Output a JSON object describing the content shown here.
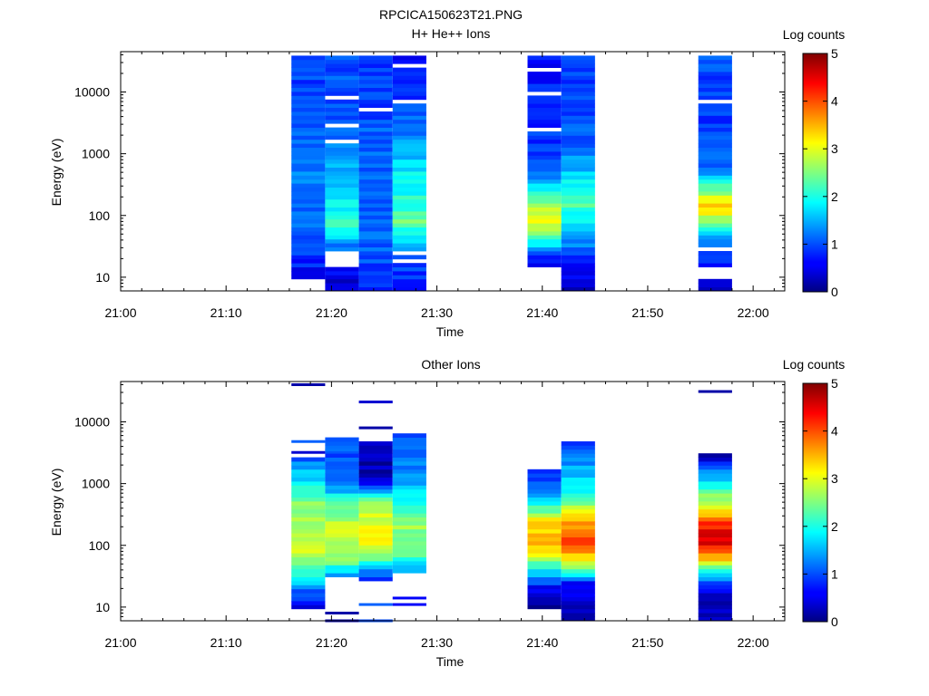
{
  "figure": {
    "title": "RPCICA150623T21.PNG"
  },
  "chart_data": [
    {
      "type": "heatmap",
      "title": "H+ He++ Ions",
      "xlabel": "Time",
      "ylabel": "Energy (eV)",
      "x_ticks": [
        "21:00",
        "21:10",
        "21:20",
        "21:30",
        "21:40",
        "21:50",
        "22:00"
      ],
      "y_ticks": [
        "10",
        "100",
        "1000",
        "10000"
      ],
      "y_scale": "log",
      "ylim": [
        6,
        45000
      ],
      "xlim": [
        "21:00",
        "22:03"
      ],
      "colorbar": {
        "label": "Log counts",
        "ticks": [
          "0",
          "1",
          "2",
          "3",
          "4",
          "5"
        ],
        "range": [
          0,
          5
        ],
        "colormap": "jet"
      },
      "columns": [
        {
          "start": "21:16:12",
          "end": "21:19:24",
          "e_min": 10,
          "e_max": 40000,
          "spectrum": [
            [
              10,
              0.6
            ],
            [
              20,
              0.8
            ],
            [
              40,
              1.0
            ],
            [
              100,
              1.1
            ],
            [
              400,
              1.2
            ],
            [
              2000,
              1.1
            ],
            [
              10000,
              1.0
            ],
            [
              40000,
              0.9
            ]
          ],
          "gaps": []
        },
        {
          "start": "21:19:24",
          "end": "21:22:36",
          "e_min": 6,
          "e_max": 40000,
          "spectrum": [
            [
              6,
              0.3
            ],
            [
              12,
              0.6
            ],
            [
              30,
              1.2
            ],
            [
              70,
              2.3
            ],
            [
              100,
              2.0
            ],
            [
              300,
              1.6
            ],
            [
              1000,
              1.3
            ],
            [
              3000,
              1.1
            ],
            [
              40000,
              1.0
            ]
          ],
          "gaps": [
            [
              15,
              25
            ],
            [
              1500,
              1700
            ],
            [
              2600,
              2900
            ],
            [
              4000,
              4400
            ],
            [
              7500,
              8200
            ],
            [
              13000,
              14000
            ],
            [
              20000,
              22000
            ],
            [
              32000,
              35000
            ]
          ]
        },
        {
          "start": "21:22:36",
          "end": "21:25:48",
          "e_min": 6,
          "e_max": 40000,
          "spectrum": [
            [
              6,
              0.9
            ],
            [
              20,
              1.0
            ],
            [
              60,
              1.1
            ],
            [
              200,
              1.0
            ],
            [
              1000,
              1.2
            ],
            [
              5000,
              0.9
            ],
            [
              40000,
              0.9
            ]
          ],
          "gaps": [
            [
              5200,
              5700
            ],
            [
              15000,
              16500
            ]
          ]
        },
        {
          "start": "21:25:48",
          "end": "21:29:00",
          "e_min": 6,
          "e_max": 40000,
          "spectrum": [
            [
              6,
              0.6
            ],
            [
              15,
              1.0
            ],
            [
              30,
              1.3
            ],
            [
              80,
              2.4
            ],
            [
              200,
              2.0
            ],
            [
              500,
              1.8
            ],
            [
              1000,
              1.5
            ],
            [
              3000,
              1.1
            ],
            [
              40000,
              0.7
            ]
          ],
          "gaps": [
            [
              16,
              20
            ],
            [
              22,
              25
            ],
            [
              4000,
              4400
            ],
            [
              6500,
              7100
            ],
            [
              26000,
              29000
            ]
          ]
        },
        {
          "start": "21:38:36",
          "end": "21:41:48",
          "e_min": 15,
          "e_max": 40000,
          "spectrum": [
            [
              15,
              0.3
            ],
            [
              35,
              1.8
            ],
            [
              60,
              2.8
            ],
            [
              100,
              3.0
            ],
            [
              200,
              2.4
            ],
            [
              400,
              1.2
            ],
            [
              1000,
              0.9
            ],
            [
              40000,
              0.7
            ]
          ],
          "gaps": [
            [
              900,
              1000
            ],
            [
              2300,
              2600
            ],
            [
              4700,
              5200
            ],
            [
              9000,
              10000
            ],
            [
              22000,
              25000
            ]
          ]
        },
        {
          "start": "21:41:48",
          "end": "21:45:00",
          "e_min": 6,
          "e_max": 40000,
          "spectrum": [
            [
              6,
              0.2
            ],
            [
              20,
              0.9
            ],
            [
              40,
              1.3
            ],
            [
              90,
              1.8
            ],
            [
              150,
              2.4
            ],
            [
              300,
              2.0
            ],
            [
              700,
              1.4
            ],
            [
              2000,
              1.0
            ],
            [
              40000,
              0.9
            ]
          ],
          "gaps": []
        },
        {
          "start": "21:54:48",
          "end": "21:58:00",
          "e_min": 6,
          "e_max": 40000,
          "spectrum": [
            [
              6,
              0.2
            ],
            [
              25,
              1.0
            ],
            [
              50,
              1.6
            ],
            [
              90,
              2.7
            ],
            [
              130,
              3.4
            ],
            [
              250,
              2.6
            ],
            [
              500,
              1.3
            ],
            [
              2000,
              0.9
            ],
            [
              40000,
              1.0
            ]
          ],
          "gaps": [
            [
              9.5,
              15
            ],
            [
              25,
              30
            ],
            [
              6800,
              7600
            ]
          ]
        }
      ]
    },
    {
      "type": "heatmap",
      "title": "Other Ions",
      "xlabel": "Time",
      "ylabel": "Energy (eV)",
      "x_ticks": [
        "21:00",
        "21:10",
        "21:20",
        "21:30",
        "21:40",
        "21:50",
        "22:00"
      ],
      "y_ticks": [
        "10",
        "100",
        "1000",
        "10000"
      ],
      "y_scale": "log",
      "ylim": [
        6,
        45000
      ],
      "xlim": [
        "21:00",
        "22:03"
      ],
      "colorbar": {
        "label": "Log counts",
        "ticks": [
          "0",
          "1",
          "2",
          "3",
          "4",
          "5"
        ],
        "range": [
          0,
          5
        ],
        "colormap": "jet"
      },
      "columns": [
        {
          "start": "21:16:12",
          "end": "21:19:24",
          "e_min": 10,
          "e_max": 2800,
          "spectrum": [
            [
              10,
              0.5
            ],
            [
              20,
              1.2
            ],
            [
              30,
              2.0
            ],
            [
              70,
              2.8
            ],
            [
              150,
              2.9
            ],
            [
              400,
              2.6
            ],
            [
              1000,
              1.9
            ],
            [
              2800,
              1.0
            ]
          ],
          "lines": [
            [
              40000,
              0.2
            ],
            [
              4800,
              1.1
            ],
            [
              3200,
              0.4
            ]
          ]
        },
        {
          "start": "21:19:24",
          "end": "21:22:36",
          "e_min": 33,
          "e_max": 5600,
          "spectrum": [
            [
              33,
              1.4
            ],
            [
              60,
              2.6
            ],
            [
              150,
              2.9
            ],
            [
              400,
              2.5
            ],
            [
              1000,
              1.2
            ],
            [
              5600,
              0.9
            ]
          ],
          "lines": [
            [
              6,
              0.2
            ],
            [
              8,
              0.2
            ],
            [
              3500,
              1.2
            ]
          ]
        },
        {
          "start": "21:22:36",
          "end": "21:25:48",
          "e_min": 26,
          "e_max": 4600,
          "spectrum": [
            [
              26,
              0.5
            ],
            [
              60,
              2.4
            ],
            [
              150,
              3.3
            ],
            [
              500,
              2.5
            ],
            [
              1200,
              0.3
            ],
            [
              4600,
              0.2
            ]
          ],
          "lines": [
            [
              21000,
              0.4
            ],
            [
              8000,
              0.2
            ],
            [
              6,
              1.0
            ],
            [
              11,
              1.1
            ]
          ]
        },
        {
          "start": "21:25:48",
          "end": "21:29:00",
          "e_min": 38,
          "e_max": 6000,
          "spectrum": [
            [
              38,
              1.5
            ],
            [
              80,
              2.4
            ],
            [
              200,
              2.6
            ],
            [
              600,
              1.8
            ],
            [
              2000,
              1.2
            ],
            [
              6000,
              0.9
            ]
          ],
          "lines": [
            [
              11,
              0.6
            ],
            [
              14,
              0.6
            ]
          ]
        },
        {
          "start": "21:38:36",
          "end": "21:41:48",
          "e_min": 9.5,
          "e_max": 1800,
          "spectrum": [
            [
              9.5,
              0.2
            ],
            [
              20,
              0.5
            ],
            [
              30,
              1.3
            ],
            [
              60,
              2.7
            ],
            [
              120,
              3.6
            ],
            [
              250,
              3.2
            ],
            [
              500,
              1.8
            ],
            [
              1800,
              0.6
            ]
          ],
          "lines": []
        },
        {
          "start": "21:41:48",
          "end": "21:45:00",
          "e_min": 6,
          "e_max": 4800,
          "spectrum": [
            [
              6,
              0.2
            ],
            [
              25,
              0.6
            ],
            [
              35,
              1.9
            ],
            [
              70,
              3.4
            ],
            [
              130,
              4.1
            ],
            [
              300,
              3.3
            ],
            [
              700,
              2.0
            ],
            [
              4800,
              0.9
            ]
          ],
          "lines": []
        },
        {
          "start": "21:54:48",
          "end": "21:58:00",
          "e_min": 6,
          "e_max": 2900,
          "spectrum": [
            [
              6,
              0.2
            ],
            [
              15,
              0.3
            ],
            [
              25,
              1.0
            ],
            [
              35,
              1.8
            ],
            [
              60,
              3.4
            ],
            [
              110,
              4.6
            ],
            [
              200,
              4.3
            ],
            [
              500,
              2.8
            ],
            [
              1200,
              1.6
            ],
            [
              2900,
              0.3
            ]
          ],
          "lines": [
            [
              31000,
              0.2
            ]
          ]
        }
      ]
    }
  ]
}
